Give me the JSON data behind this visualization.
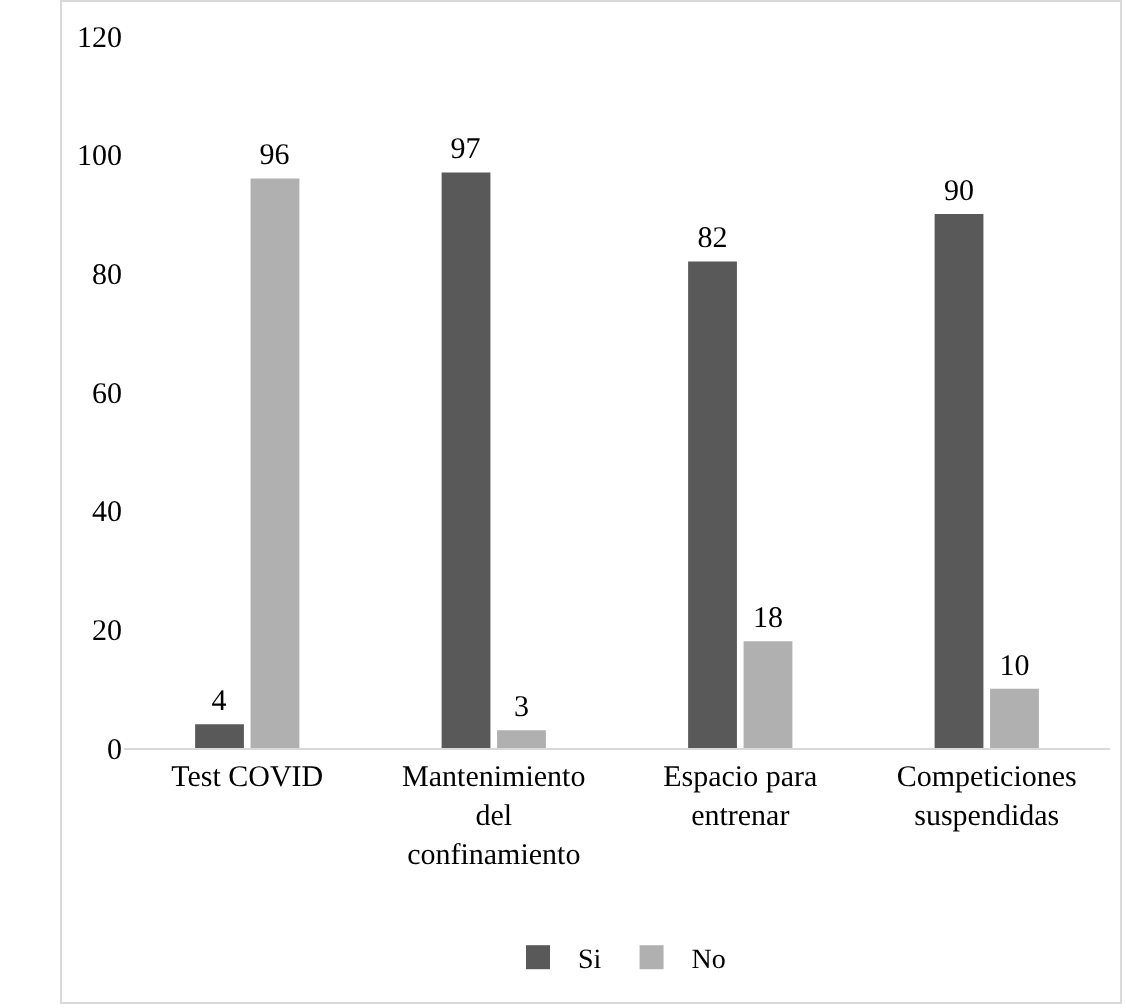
{
  "chart_data": {
    "type": "bar",
    "categories": [
      "Test COVID",
      "Mantenimiento del confinamiento",
      "Espacio para entrenar",
      "Competiciones suspendidas"
    ],
    "series": [
      {
        "name": "Si",
        "color": "#595959",
        "values": [
          4,
          97,
          82,
          90
        ]
      },
      {
        "name": "No",
        "color": "#b0b0b0",
        "values": [
          96,
          3,
          18,
          10
        ]
      }
    ],
    "ylim": [
      0,
      120
    ],
    "yticks": [
      0,
      20,
      40,
      60,
      80,
      100,
      120
    ],
    "grid": false,
    "legend": "bottom",
    "data_labels": true
  }
}
